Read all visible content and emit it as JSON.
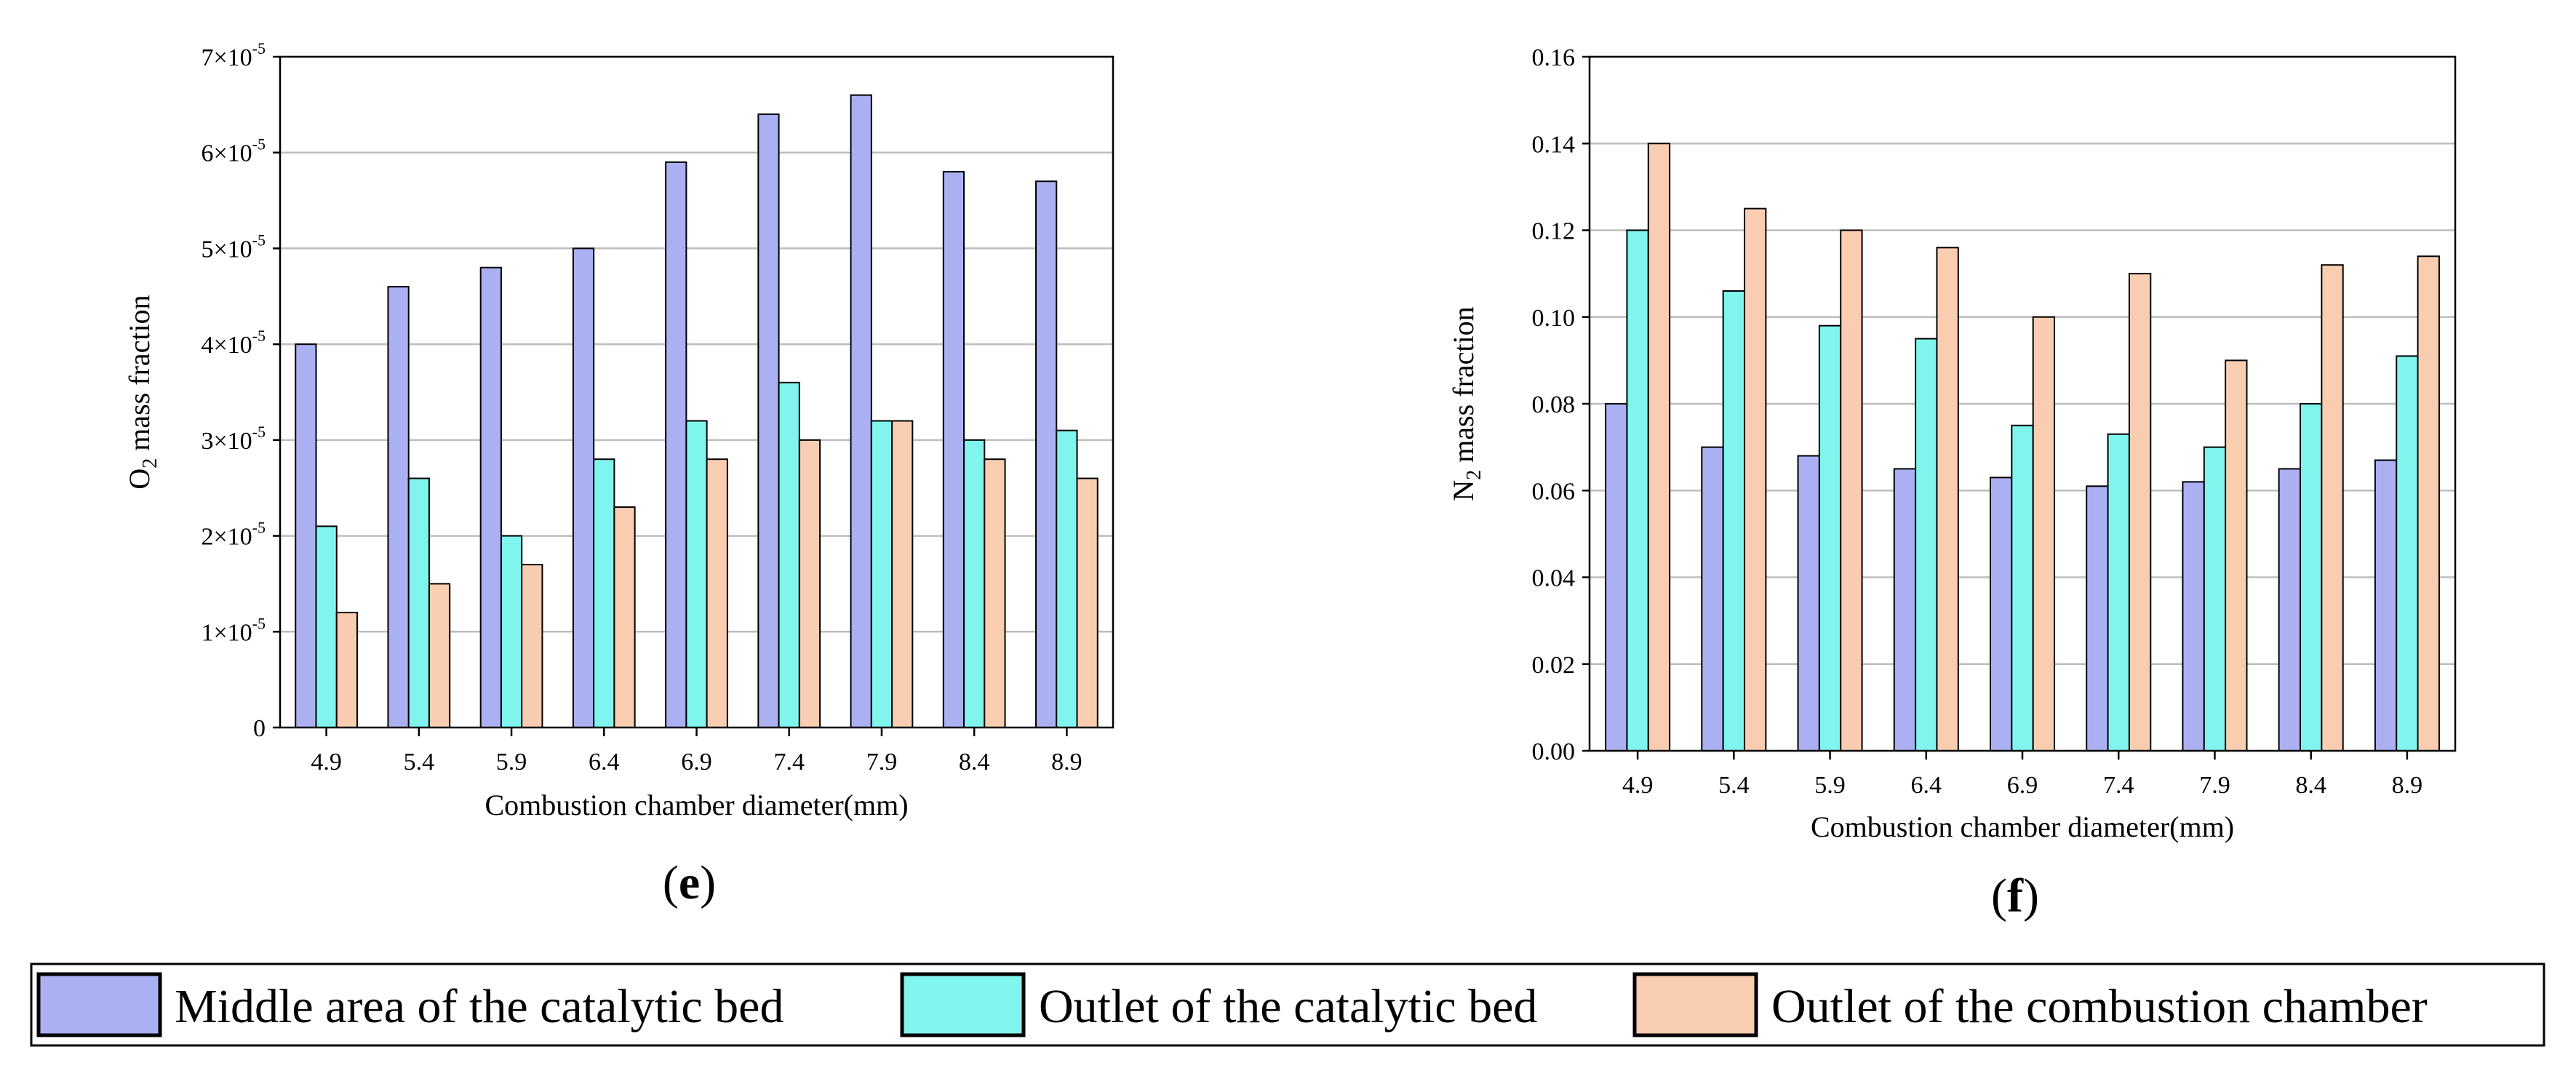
{
  "colors": {
    "series": [
      "#aab0f2",
      "#7ff5ee",
      "#f9cdb0"
    ],
    "grid": "#bdbdbd",
    "axis": "#000000"
  },
  "legend": [
    "Middle area of the catalytic bed",
    "Outlet of the catalytic bed",
    "Outlet of the combustion chamber"
  ],
  "chart_data": [
    {
      "type": "bar",
      "panel_label": "e",
      "title": "",
      "xlabel": "Combustion chamber diameter(mm)",
      "ylabel_main": "O",
      "ylabel_sub": "2",
      "ylabel_rest": " mass fraction",
      "categories": [
        "4.9",
        "5.4",
        "5.9",
        "6.4",
        "6.9",
        "7.4",
        "7.9",
        "8.4",
        "8.9"
      ],
      "ylim": [
        0,
        7e-05
      ],
      "yticks": [
        0,
        1e-05,
        2e-05,
        3e-05,
        4e-05,
        5e-05,
        6e-05,
        7e-05
      ],
      "ytick_labels": [
        {
          "mant": "0",
          "exp": ""
        },
        {
          "mant": "1×10",
          "exp": "-5"
        },
        {
          "mant": "2×10",
          "exp": "-5"
        },
        {
          "mant": "3×10",
          "exp": "-5"
        },
        {
          "mant": "4×10",
          "exp": "-5"
        },
        {
          "mant": "5×10",
          "exp": "-5"
        },
        {
          "mant": "6×10",
          "exp": "-5"
        },
        {
          "mant": "7×10",
          "exp": "-5"
        }
      ],
      "grid": true,
      "series": [
        {
          "name": "Middle area of the catalytic bed",
          "values": [
            4e-05,
            4.6e-05,
            4.8e-05,
            5e-05,
            5.9e-05,
            6.4e-05,
            6.6e-05,
            5.8e-05,
            5.7e-05
          ]
        },
        {
          "name": "Outlet of the catalytic bed",
          "values": [
            2.1e-05,
            2.6e-05,
            2e-05,
            2.8e-05,
            3.2e-05,
            3.6e-05,
            3.2e-05,
            3e-05,
            3.1e-05
          ]
        },
        {
          "name": "Outlet of the combustion chamber",
          "values": [
            1.2e-05,
            1.5e-05,
            1.7e-05,
            2.3e-05,
            2.8e-05,
            3e-05,
            3.2e-05,
            2.8e-05,
            2.6e-05
          ]
        }
      ]
    },
    {
      "type": "bar",
      "panel_label": "f",
      "title": "",
      "xlabel": "Combustion chamber diameter(mm)",
      "ylabel_main": "N",
      "ylabel_sub": "2",
      "ylabel_rest": " mass fraction",
      "categories": [
        "4.9",
        "5.4",
        "5.9",
        "6.4",
        "6.9",
        "7.4",
        "7.9",
        "8.4",
        "8.9"
      ],
      "ylim": [
        0,
        0.16
      ],
      "yticks": [
        0,
        0.02,
        0.04,
        0.06,
        0.08,
        0.1,
        0.12,
        0.14,
        0.16
      ],
      "ytick_labels": [
        {
          "mant": "0.00",
          "exp": ""
        },
        {
          "mant": "0.02",
          "exp": ""
        },
        {
          "mant": "0.04",
          "exp": ""
        },
        {
          "mant": "0.06",
          "exp": ""
        },
        {
          "mant": "0.08",
          "exp": ""
        },
        {
          "mant": "0.10",
          "exp": ""
        },
        {
          "mant": "0.12",
          "exp": ""
        },
        {
          "mant": "0.14",
          "exp": ""
        },
        {
          "mant": "0.16",
          "exp": ""
        }
      ],
      "grid": true,
      "series": [
        {
          "name": "Middle area of the catalytic bed",
          "values": [
            0.08,
            0.07,
            0.068,
            0.065,
            0.063,
            0.061,
            0.062,
            0.065,
            0.067
          ]
        },
        {
          "name": "Outlet of the catalytic bed",
          "values": [
            0.12,
            0.106,
            0.098,
            0.095,
            0.075,
            0.073,
            0.07,
            0.08,
            0.091
          ]
        },
        {
          "name": "Outlet of the combustion chamber",
          "values": [
            0.14,
            0.125,
            0.12,
            0.116,
            0.1,
            0.11,
            0.09,
            0.112,
            0.114
          ]
        }
      ]
    }
  ]
}
